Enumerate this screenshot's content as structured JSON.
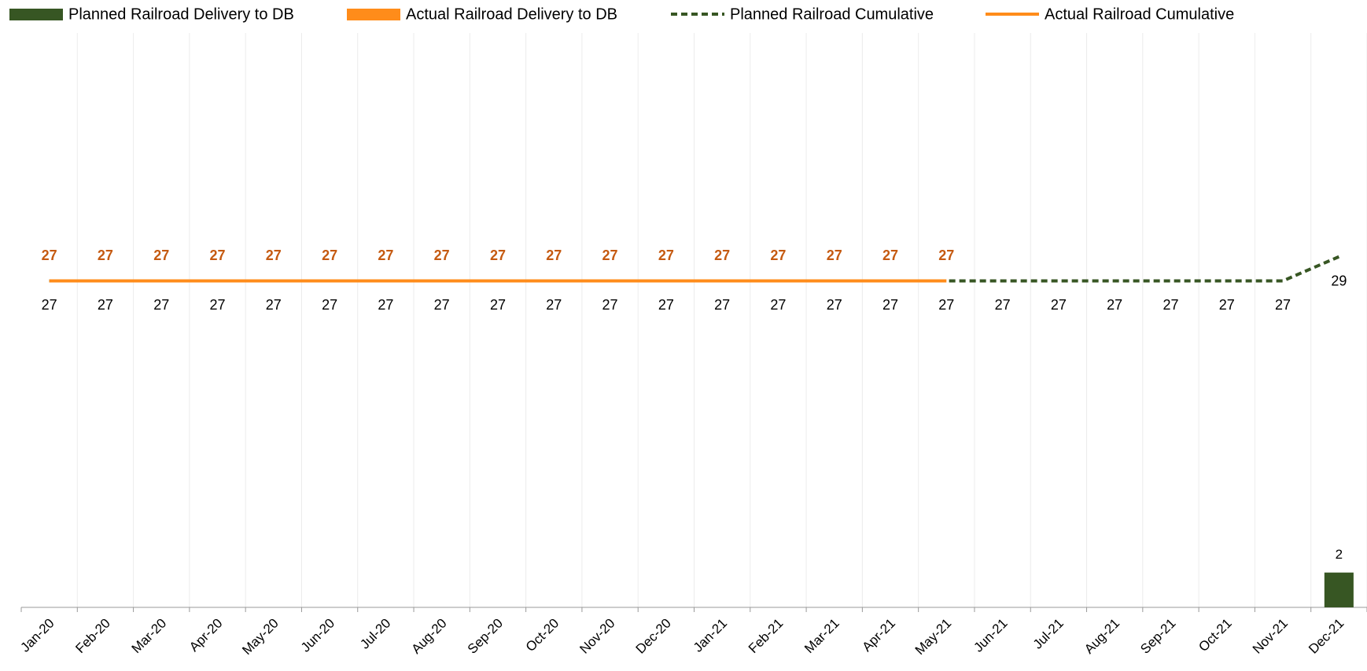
{
  "chart_data": {
    "type": "bar",
    "categories": [
      "Jan-20",
      "Feb-20",
      "Mar-20",
      "Apr-20",
      "May-20",
      "Jun-20",
      "Jul-20",
      "Aug-20",
      "Sep-20",
      "Oct-20",
      "Nov-20",
      "Dec-20",
      "Jan-21",
      "Feb-21",
      "Mar-21",
      "Apr-21",
      "May-21",
      "Jun-21",
      "Jul-21",
      "Aug-21",
      "Sep-21",
      "Oct-21",
      "Nov-21",
      "Dec-21"
    ],
    "series": [
      {
        "name": "Planned Railroad Delivery to DB",
        "type": "bar",
        "color": "#375623",
        "values": [
          null,
          null,
          null,
          null,
          null,
          null,
          null,
          null,
          null,
          null,
          null,
          null,
          null,
          null,
          null,
          null,
          null,
          null,
          null,
          null,
          null,
          null,
          null,
          2
        ]
      },
      {
        "name": "Actual Railroad Delivery to DB",
        "type": "bar",
        "color": "#ff8c1a",
        "values": [
          null,
          null,
          null,
          null,
          null,
          null,
          null,
          null,
          null,
          null,
          null,
          null,
          null,
          null,
          null,
          null,
          null,
          null,
          null,
          null,
          null,
          null,
          null,
          null
        ]
      },
      {
        "name": "Planned Railroad Cumulative",
        "type": "line",
        "axis": "y2",
        "color": "#375623",
        "dashed": true,
        "label_color": "#000000",
        "values": [
          27,
          27,
          27,
          27,
          27,
          27,
          27,
          27,
          27,
          27,
          27,
          27,
          27,
          27,
          27,
          27,
          27,
          27,
          27,
          27,
          27,
          27,
          27,
          29
        ]
      },
      {
        "name": "Actual Railroad Cumulative",
        "type": "line",
        "axis": "y2",
        "color": "#ff8c1a",
        "dashed": false,
        "label_color": "#c55a11",
        "values": [
          27,
          27,
          27,
          27,
          27,
          27,
          27,
          27,
          27,
          27,
          27,
          27,
          27,
          27,
          27,
          27,
          27,
          null,
          null,
          null,
          null,
          null,
          null,
          null
        ]
      }
    ],
    "ylim": [
      0,
      33
    ],
    "y2lim": [
      0,
      47.5
    ],
    "grid": true,
    "legend": "top"
  }
}
